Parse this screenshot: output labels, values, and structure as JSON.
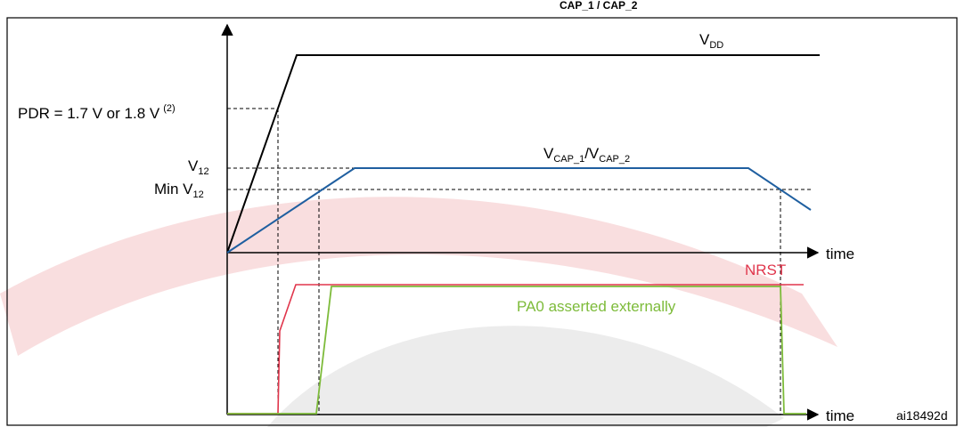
{
  "header_fragment": "CAP_1 / CAP_2",
  "labels": {
    "vdd": "V",
    "vdd_sub": "DD",
    "pdr": "PDR = 1.7 V or 1.8 V",
    "pdr_note": "(2)",
    "v12": "V",
    "v12_sub": "12",
    "min_v12": "Min V",
    "min_v12_sub": "12",
    "vcap_v1": "V",
    "vcap_sub1": "CAP_1",
    "vcap_slash": "/V",
    "vcap_sub2": "CAP_2",
    "nrst": "NRST",
    "pa0": "PA0 asserted externally",
    "time_top": "time",
    "time_bottom": "time",
    "figure_id": "ai18492d"
  },
  "colors": {
    "vdd": "#000000",
    "vcap": "#1f5fa0",
    "nrst": "#e0354b",
    "pa0": "#7dbb3a",
    "axis": "#000000",
    "watermark_red": "#f3c2c4",
    "watermark_gray": "#e2e2e2"
  }
}
